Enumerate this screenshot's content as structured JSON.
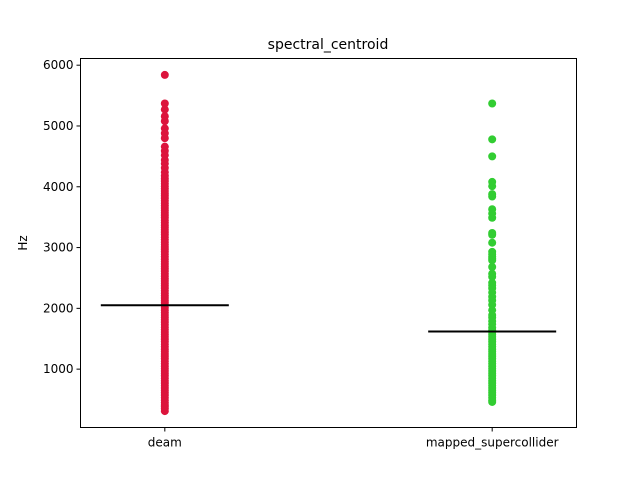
{
  "chart_data": {
    "type": "scatter",
    "title": "spectral_centroid",
    "xlabel": "",
    "ylabel": "Hz",
    "categories": [
      "deam",
      "mapped_supercollider"
    ],
    "ylim": [
      40,
      6110
    ],
    "yticks": [
      1000,
      2000,
      3000,
      4000,
      5000,
      6000
    ],
    "grid": false,
    "series": [
      {
        "category": "deam",
        "color": "#dc143c",
        "mean": 2050,
        "values": [
          5840,
          5370,
          5270,
          5160,
          5080,
          4960,
          4880,
          4800,
          4660,
          4590,
          4520,
          4440,
          4380,
          4310,
          4240,
          4180,
          4130,
          4090,
          4050,
          4010,
          3970,
          3930,
          3890,
          3850,
          3810,
          3770,
          3730,
          3690,
          3650,
          3610,
          3570,
          3530,
          3490,
          3450,
          3410,
          3370,
          3330,
          3290,
          3250,
          3210,
          3170,
          3130,
          3090,
          3050,
          3010,
          2970,
          2930,
          2890,
          2850,
          2810,
          2770,
          2730,
          2690,
          2650,
          2610,
          2570,
          2530,
          2490,
          2450,
          2410,
          2370,
          2330,
          2290,
          2250,
          2210,
          2170,
          2130,
          2090,
          2050,
          2010,
          1970,
          1930,
          1890,
          1850,
          1810,
          1770,
          1730,
          1690,
          1650,
          1610,
          1570,
          1530,
          1490,
          1450,
          1410,
          1370,
          1330,
          1290,
          1250,
          1210,
          1170,
          1130,
          1090,
          1050,
          1010,
          970,
          930,
          890,
          850,
          810,
          770,
          730,
          690,
          650,
          610,
          570,
          530,
          490,
          450,
          410,
          380,
          350,
          310
        ]
      },
      {
        "category": "mapped_supercollider",
        "color": "#32cd32",
        "mean": 1620,
        "values": [
          5370,
          4780,
          4500,
          4080,
          4010,
          3880,
          3840,
          3630,
          3560,
          3490,
          3240,
          3210,
          3080,
          2930,
          2890,
          2850,
          2820,
          2790,
          2680,
          2570,
          2520,
          2420,
          2380,
          2330,
          2260,
          2190,
          2130,
          2060,
          1970,
          1890,
          1850,
          1790,
          1740,
          1680,
          1640,
          1610,
          1570,
          1530,
          1490,
          1450,
          1410,
          1370,
          1330,
          1290,
          1250,
          1210,
          1170,
          1130,
          1090,
          1050,
          1010,
          970,
          930,
          890,
          850,
          810,
          770,
          730,
          690,
          650,
          610,
          570,
          530,
          490,
          460
        ]
      }
    ]
  }
}
